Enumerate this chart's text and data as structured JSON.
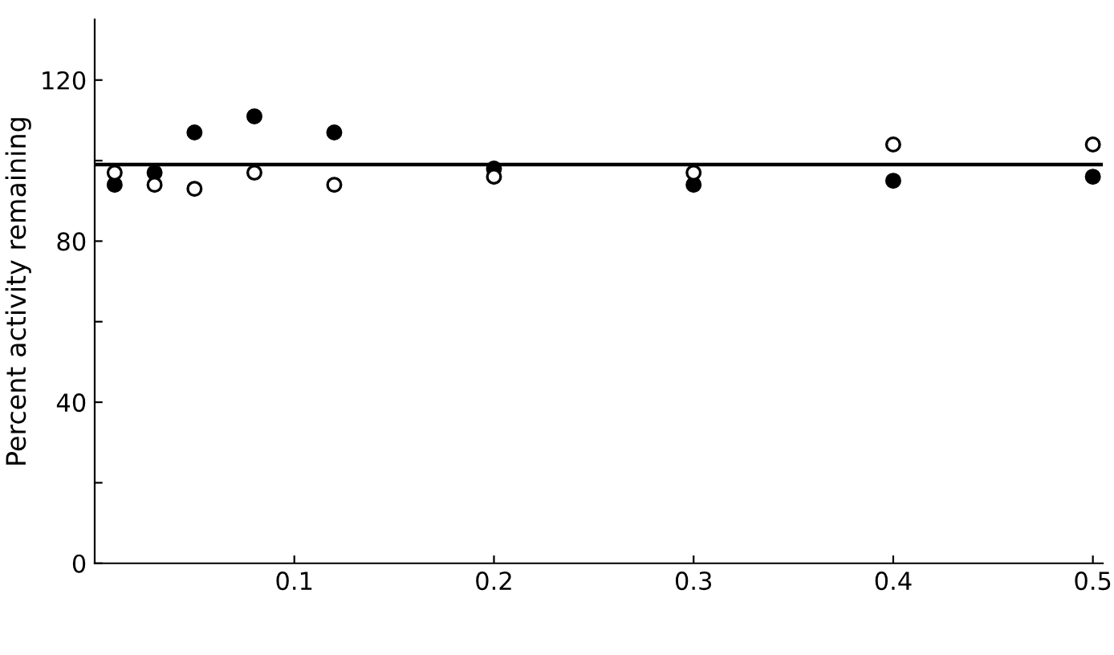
{
  "chart_data": {
    "type": "scatter",
    "ylabel": "Percent activity remaining",
    "x": [
      0.01,
      0.03,
      0.05,
      0.08,
      0.12,
      0.2,
      0.3,
      0.4,
      0.5
    ],
    "series": [
      {
        "color": "#000000",
        "values": [
          94,
          97,
          107,
          111,
          107,
          98,
          94,
          95,
          96
        ]
      },
      {
        "color": "#ffffff",
        "values": [
          97,
          94,
          93,
          97,
          94,
          96,
          97,
          104,
          104
        ]
      }
    ],
    "xlim": [
      0,
      0.505
    ],
    "xticks": [
      0.1,
      0.2,
      0.3,
      0.4,
      0.5
    ],
    "ylim": [
      0,
      135
    ],
    "yticks": [
      0,
      {
        "value": 20,
        "label": null
      },
      40,
      {
        "value": 60,
        "label": null
      },
      80,
      {
        "value": 100,
        "label": null
      },
      120
    ],
    "ref_lines": [
      {
        "axis": "y",
        "value": 99,
        "color": "#000000",
        "line_style": "solid"
      }
    ],
    "marker": "circle",
    "grid": false,
    "legend": false
  }
}
